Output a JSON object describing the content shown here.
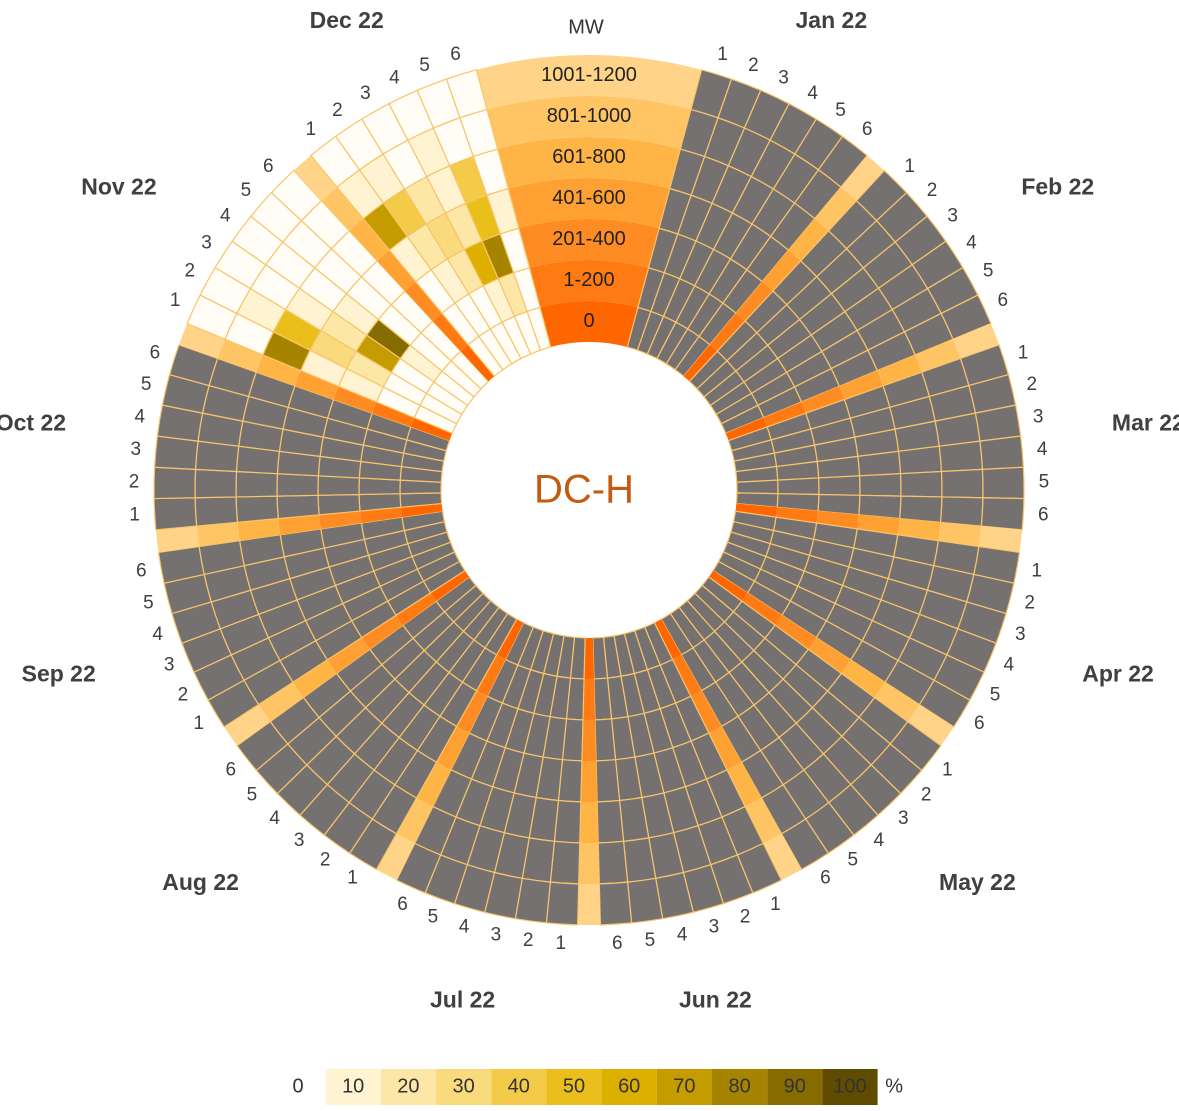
{
  "chart_data": {
    "type": "radial-heatmap",
    "title": "DC-H",
    "ring_axis_label": "MW",
    "rings": [
      "0",
      "1-200",
      "201-400",
      "401-600",
      "601-800",
      "801-1000",
      "1001-1200"
    ],
    "ring_colors": [
      "#ff6600",
      "#ff7a12",
      "#ff8c22",
      "#ffa032",
      "#ffb446",
      "#ffc564",
      "#ffd488"
    ],
    "columns": [
      1,
      2,
      3,
      4,
      5,
      6
    ],
    "null_color": "#767171",
    "scale_colors": [
      "#fffdf6",
      "#fff3d2",
      "#fde7a6",
      "#f9da7c",
      "#f3cb48",
      "#eabf1c",
      "#ddb000",
      "#c49c00",
      "#a68400",
      "#866c00",
      "#5f4c00"
    ],
    "legend": {
      "ticks": [
        0,
        10,
        20,
        30,
        40,
        50,
        60,
        70,
        80,
        90,
        100
      ],
      "unit": "%"
    },
    "months": [
      {
        "name": "Jan 22",
        "values": [
          [
            null,
            null,
            null,
            null,
            null,
            null
          ],
          [
            null,
            null,
            null,
            null,
            null,
            null
          ],
          [
            null,
            null,
            null,
            null,
            null,
            null
          ],
          [
            null,
            null,
            null,
            null,
            null,
            null
          ],
          [
            null,
            null,
            null,
            null,
            null,
            null
          ],
          [
            null,
            null,
            null,
            null,
            null,
            null
          ],
          [
            null,
            null,
            null,
            null,
            null,
            null
          ]
        ]
      },
      {
        "name": "Feb 22",
        "values": [
          [
            null,
            null,
            null,
            null,
            null,
            null
          ],
          [
            null,
            null,
            null,
            null,
            null,
            null
          ],
          [
            null,
            null,
            null,
            null,
            null,
            null
          ],
          [
            null,
            null,
            null,
            null,
            null,
            null
          ],
          [
            null,
            null,
            null,
            null,
            null,
            null
          ],
          [
            null,
            null,
            null,
            null,
            null,
            null
          ],
          [
            null,
            null,
            null,
            null,
            null,
            null
          ]
        ]
      },
      {
        "name": "Mar 22",
        "values": [
          [
            null,
            null,
            null,
            null,
            null,
            null
          ],
          [
            null,
            null,
            null,
            null,
            null,
            null
          ],
          [
            null,
            null,
            null,
            null,
            null,
            null
          ],
          [
            null,
            null,
            null,
            null,
            null,
            null
          ],
          [
            null,
            null,
            null,
            null,
            null,
            null
          ],
          [
            null,
            null,
            null,
            null,
            null,
            null
          ],
          [
            null,
            null,
            null,
            null,
            null,
            null
          ]
        ]
      },
      {
        "name": "Apr 22",
        "values": [
          [
            null,
            null,
            null,
            null,
            null,
            null
          ],
          [
            null,
            null,
            null,
            null,
            null,
            null
          ],
          [
            null,
            null,
            null,
            null,
            null,
            null
          ],
          [
            null,
            null,
            null,
            null,
            null,
            null
          ],
          [
            null,
            null,
            null,
            null,
            null,
            null
          ],
          [
            null,
            null,
            null,
            null,
            null,
            null
          ],
          [
            null,
            null,
            null,
            null,
            null,
            null
          ]
        ]
      },
      {
        "name": "May 22",
        "values": [
          [
            null,
            null,
            null,
            null,
            null,
            null
          ],
          [
            null,
            null,
            null,
            null,
            null,
            null
          ],
          [
            null,
            null,
            null,
            null,
            null,
            null
          ],
          [
            null,
            null,
            null,
            null,
            null,
            null
          ],
          [
            null,
            null,
            null,
            null,
            null,
            null
          ],
          [
            null,
            null,
            null,
            null,
            null,
            null
          ],
          [
            null,
            null,
            null,
            null,
            null,
            null
          ]
        ]
      },
      {
        "name": "Jun 22",
        "values": [
          [
            null,
            null,
            null,
            null,
            null,
            null
          ],
          [
            null,
            null,
            null,
            null,
            null,
            null
          ],
          [
            null,
            null,
            null,
            null,
            null,
            null
          ],
          [
            null,
            null,
            null,
            null,
            null,
            null
          ],
          [
            null,
            null,
            null,
            null,
            null,
            null
          ],
          [
            null,
            null,
            null,
            null,
            null,
            null
          ],
          [
            null,
            null,
            null,
            null,
            null,
            null
          ]
        ]
      },
      {
        "name": "Jul 22",
        "values": [
          [
            null,
            null,
            null,
            null,
            null,
            null
          ],
          [
            null,
            null,
            null,
            null,
            null,
            null
          ],
          [
            null,
            null,
            null,
            null,
            null,
            null
          ],
          [
            null,
            null,
            null,
            null,
            null,
            null
          ],
          [
            null,
            null,
            null,
            null,
            null,
            null
          ],
          [
            null,
            null,
            null,
            null,
            null,
            null
          ],
          [
            null,
            null,
            null,
            null,
            null,
            null
          ]
        ]
      },
      {
        "name": "Aug 22",
        "values": [
          [
            null,
            null,
            null,
            null,
            null,
            null
          ],
          [
            null,
            null,
            null,
            null,
            null,
            null
          ],
          [
            null,
            null,
            null,
            null,
            null,
            null
          ],
          [
            null,
            null,
            null,
            null,
            null,
            null
          ],
          [
            null,
            null,
            null,
            null,
            null,
            null
          ],
          [
            null,
            null,
            null,
            null,
            null,
            null
          ],
          [
            null,
            null,
            null,
            null,
            null,
            null
          ]
        ]
      },
      {
        "name": "Sep 22",
        "values": [
          [
            null,
            null,
            null,
            null,
            null,
            null
          ],
          [
            null,
            null,
            null,
            null,
            null,
            null
          ],
          [
            null,
            null,
            null,
            null,
            null,
            null
          ],
          [
            null,
            null,
            null,
            null,
            null,
            null
          ],
          [
            null,
            null,
            null,
            null,
            null,
            null
          ],
          [
            null,
            null,
            null,
            null,
            null,
            null
          ],
          [
            null,
            null,
            null,
            null,
            null,
            null
          ]
        ]
      },
      {
        "name": "Oct 22",
        "values": [
          [
            null,
            null,
            null,
            null,
            null,
            null
          ],
          [
            null,
            null,
            null,
            null,
            null,
            null
          ],
          [
            null,
            null,
            null,
            null,
            null,
            null
          ],
          [
            null,
            null,
            null,
            null,
            null,
            null
          ],
          [
            null,
            null,
            null,
            null,
            null,
            null
          ],
          [
            null,
            null,
            null,
            null,
            null,
            null
          ],
          [
            null,
            null,
            null,
            null,
            null,
            null
          ]
        ]
      },
      {
        "name": "Nov 22",
        "values": [
          [
            0,
            0,
            0,
            0,
            0,
            0
          ],
          [
            0,
            0,
            0,
            10,
            0,
            0
          ],
          [
            10,
            20,
            70,
            90,
            0,
            0
          ],
          [
            10,
            30,
            20,
            10,
            0,
            0
          ],
          [
            80,
            50,
            10,
            0,
            0,
            0
          ],
          [
            0,
            10,
            0,
            0,
            0,
            0
          ],
          [
            0,
            0,
            0,
            0,
            0,
            0
          ]
        ]
      },
      {
        "name": "Dec 22",
        "values": [
          [
            0,
            0,
            0,
            0,
            0,
            0
          ],
          [
            0,
            0,
            0,
            10,
            20,
            0
          ],
          [
            0,
            10,
            20,
            60,
            80,
            0
          ],
          [
            10,
            20,
            30,
            20,
            50,
            10
          ],
          [
            70,
            40,
            20,
            10,
            40,
            0
          ],
          [
            10,
            10,
            0,
            10,
            0,
            0
          ],
          [
            0,
            0,
            0,
            0,
            0,
            0
          ]
        ]
      }
    ]
  }
}
